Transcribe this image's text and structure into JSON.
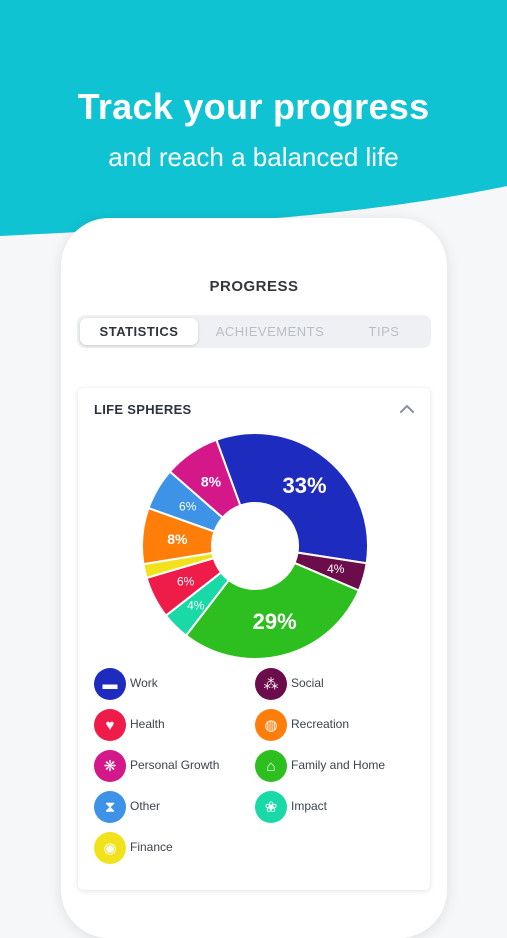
{
  "hero": {
    "headline": "Track your progress",
    "subheadline": "and reach a balanced life",
    "color": "#0fc3d3"
  },
  "screen": {
    "title": "PROGRESS",
    "tabs": [
      {
        "label": "STATISTICS",
        "active": true
      },
      {
        "label": "ACHIEVEMENTS",
        "active": false
      },
      {
        "label": "TIPS",
        "active": false
      }
    ]
  },
  "card": {
    "title": "LIFE SPHERES",
    "collapse_icon": "chevron-up-icon"
  },
  "chart_data": {
    "type": "pie",
    "donut": true,
    "slices": [
      {
        "name": "Work",
        "value": 33,
        "label": "33%",
        "color": "#1e2bbf"
      },
      {
        "name": "Social",
        "value": 4,
        "label": "4%",
        "color": "#6b0d4a"
      },
      {
        "name": "Family and Home",
        "value": 29,
        "label": "29%",
        "color": "#2dbf1f"
      },
      {
        "name": "Impact",
        "value": 4,
        "label": "4%",
        "color": "#19d9a6"
      },
      {
        "name": "Health",
        "value": 6,
        "label": "6%",
        "color": "#ef1b48"
      },
      {
        "name": "Finance",
        "value": 2,
        "label": "",
        "color": "#f2e21b"
      },
      {
        "name": "Recreation",
        "value": 8,
        "label": "8%",
        "color": "#ff7e0a"
      },
      {
        "name": "Other",
        "value": 6,
        "label": "6%",
        "color": "#3e93e6"
      },
      {
        "name": "Personal Growth",
        "value": 8,
        "label": "8%",
        "color": "#d4188a"
      }
    ]
  },
  "legend": [
    {
      "label": "Work",
      "color": "#1e2bbf",
      "icon": "briefcase-icon",
      "glyph": "▬"
    },
    {
      "label": "Social",
      "color": "#6b0d4a",
      "icon": "people-icon",
      "glyph": "⁂"
    },
    {
      "label": "Health",
      "color": "#ef1b48",
      "icon": "heart-icon",
      "glyph": "♥"
    },
    {
      "label": "Recreation",
      "color": "#ff7e0a",
      "icon": "globe-icon",
      "glyph": "◍"
    },
    {
      "label": "Personal Growth",
      "color": "#d4188a",
      "icon": "brain-icon",
      "glyph": "❋"
    },
    {
      "label": "Family and Home",
      "color": "#2dbf1f",
      "icon": "home-icon",
      "glyph": "⌂"
    },
    {
      "label": "Other",
      "color": "#3e93e6",
      "icon": "hourglass-icon",
      "glyph": "⧗"
    },
    {
      "label": "Impact",
      "color": "#19d9a6",
      "icon": "tree-icon",
      "glyph": "❀"
    },
    {
      "label": "Finance",
      "color": "#f2e21b",
      "icon": "coins-icon",
      "glyph": "◉"
    }
  ]
}
